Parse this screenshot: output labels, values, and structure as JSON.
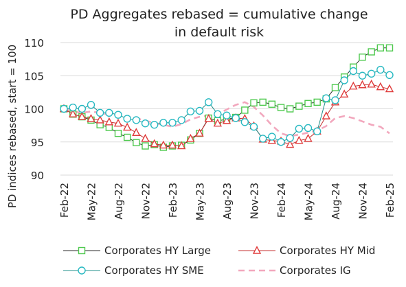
{
  "chart_data": {
    "type": "line",
    "title_lines": [
      "PD Aggregates rebased = cumulative change",
      "in default risk"
    ],
    "xlabel": "",
    "ylabel": "PD indices rebased, start = 100",
    "ylim": [
      90,
      110
    ],
    "yticks": [
      90,
      95,
      100,
      105,
      110
    ],
    "x_tick_labels": [
      "Feb-22",
      "May-22",
      "Aug-22",
      "Nov-22",
      "Feb-23",
      "May-23",
      "Aug-23",
      "Nov-23",
      "Feb-24",
      "May-24",
      "Aug-24",
      "Nov-24",
      "Feb-25"
    ],
    "x": [
      "Feb-22",
      "Mar-22",
      "Apr-22",
      "May-22",
      "Jun-22",
      "Jul-22",
      "Aug-22",
      "Sep-22",
      "Oct-22",
      "Nov-22",
      "Dec-22",
      "Jan-23",
      "Feb-23",
      "Mar-23",
      "Apr-23",
      "May-23",
      "Jun-23",
      "Jul-23",
      "Aug-23",
      "Sep-23",
      "Oct-23",
      "Nov-23",
      "Dec-23",
      "Jan-24",
      "Feb-24",
      "Mar-24",
      "Apr-24",
      "May-24",
      "Jun-24",
      "Jul-24",
      "Aug-24",
      "Sep-24",
      "Oct-24",
      "Nov-24",
      "Dec-24",
      "Jan-25",
      "Feb-25"
    ],
    "grid": "horizontal",
    "legend_position": "bottom",
    "series": [
      {
        "name": "Corporates HY Large",
        "color": "#4ec94e",
        "marker": "square",
        "values": [
          100.0,
          99.2,
          98.8,
          98.3,
          97.6,
          97.2,
          96.3,
          95.7,
          94.9,
          94.4,
          94.6,
          94.2,
          94.4,
          94.5,
          95.3,
          96.3,
          98.6,
          98.2,
          98.4,
          98.7,
          99.8,
          100.9,
          101.0,
          100.7,
          100.2,
          100.0,
          100.4,
          100.8,
          101.0,
          101.5,
          103.2,
          104.8,
          106.3,
          107.8,
          108.6,
          109.2,
          109.2
        ]
      },
      {
        "name": "Corporates HY Mid",
        "color": "#e03c3c",
        "marker": "triangle",
        "values": [
          100.0,
          99.2,
          98.8,
          98.5,
          98.3,
          98.0,
          97.8,
          97.2,
          96.4,
          95.5,
          94.7,
          94.5,
          94.5,
          94.4,
          95.5,
          96.3,
          98.5,
          97.8,
          98.2,
          98.6,
          98.5,
          97.4,
          95.4,
          95.2,
          95.1,
          94.6,
          95.2,
          95.5,
          96.6,
          98.9,
          101.0,
          102.2,
          103.4,
          103.6,
          103.7,
          103.3,
          103.0
        ]
      },
      {
        "name": "Corporates HY SME",
        "color": "#27b9c2",
        "marker": "circle",
        "values": [
          100.0,
          100.2,
          100.0,
          100.6,
          99.4,
          99.4,
          99.1,
          98.5,
          98.3,
          97.8,
          97.6,
          97.9,
          97.9,
          98.3,
          99.6,
          99.7,
          101.0,
          99.2,
          99.0,
          98.6,
          98.0,
          97.3,
          95.5,
          95.8,
          95.0,
          95.6,
          97.0,
          97.1,
          96.6,
          101.6,
          101.3,
          104.3,
          105.7,
          105.0,
          105.3,
          105.9,
          105.1
        ]
      },
      {
        "name": "Corporates IG",
        "color": "#f2a7bd",
        "marker": "none",
        "dashed": true,
        "values": [
          100.0,
          99.6,
          99.4,
          99.6,
          99.4,
          99.1,
          99.0,
          98.8,
          98.6,
          98.2,
          97.9,
          97.6,
          97.3,
          97.7,
          98.4,
          98.8,
          99.0,
          99.2,
          99.9,
          100.6,
          101.0,
          100.3,
          99.0,
          97.5,
          96.3,
          95.9,
          96.1,
          96.4,
          96.7,
          97.4,
          98.6,
          98.9,
          98.6,
          98.1,
          97.6,
          97.3,
          96.3
        ]
      }
    ]
  }
}
